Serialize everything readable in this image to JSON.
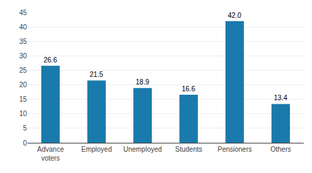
{
  "chart_data": {
    "type": "bar",
    "categories": [
      "Advance\nvoters",
      "Employed",
      "Unemployed",
      "Students",
      "Pensioners",
      "Others"
    ],
    "values": [
      26.6,
      21.5,
      18.9,
      16.6,
      42.0,
      13.4
    ],
    "value_labels": [
      "26.6",
      "21.5",
      "18.9",
      "16.6",
      "42.0",
      "13.4"
    ],
    "data_labels": true,
    "color": "#1a7aab",
    "ylim": [
      0,
      45
    ],
    "yticks": [
      0,
      5,
      10,
      15,
      20,
      25,
      30,
      35,
      40,
      45
    ],
    "grid": true
  }
}
